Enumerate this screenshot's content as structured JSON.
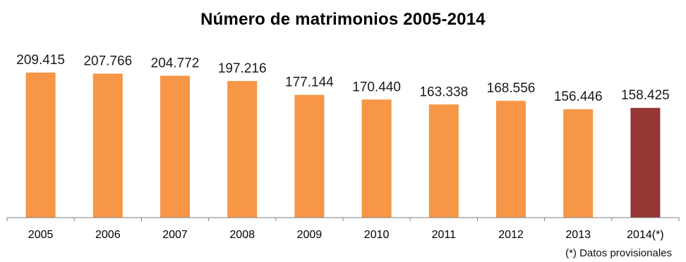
{
  "chart_data": {
    "type": "bar",
    "title": "Número de matrimonios 2005-2014",
    "categories": [
      "2005",
      "2006",
      "2007",
      "2008",
      "2009",
      "2010",
      "2011",
      "2012",
      "2013",
      "2014(*)"
    ],
    "values": [
      209415,
      207766,
      204772,
      197216,
      177144,
      170440,
      163338,
      168556,
      156446,
      158425
    ],
    "value_labels": [
      "209.415",
      "207.766",
      "204.772",
      "197.216",
      "177.144",
      "170.440",
      "163.338",
      "168.556",
      "156.446",
      "158.425"
    ],
    "xlabel": "",
    "ylabel": "",
    "ylim": [
      0,
      209415
    ],
    "grid": false,
    "legend": "none",
    "footnote": "(*) Datos provisionales",
    "colors": {
      "bar": "#F79646",
      "highlight": "#953735",
      "axis": "#7f7f7f"
    },
    "highlight_category": "2014(*)"
  }
}
